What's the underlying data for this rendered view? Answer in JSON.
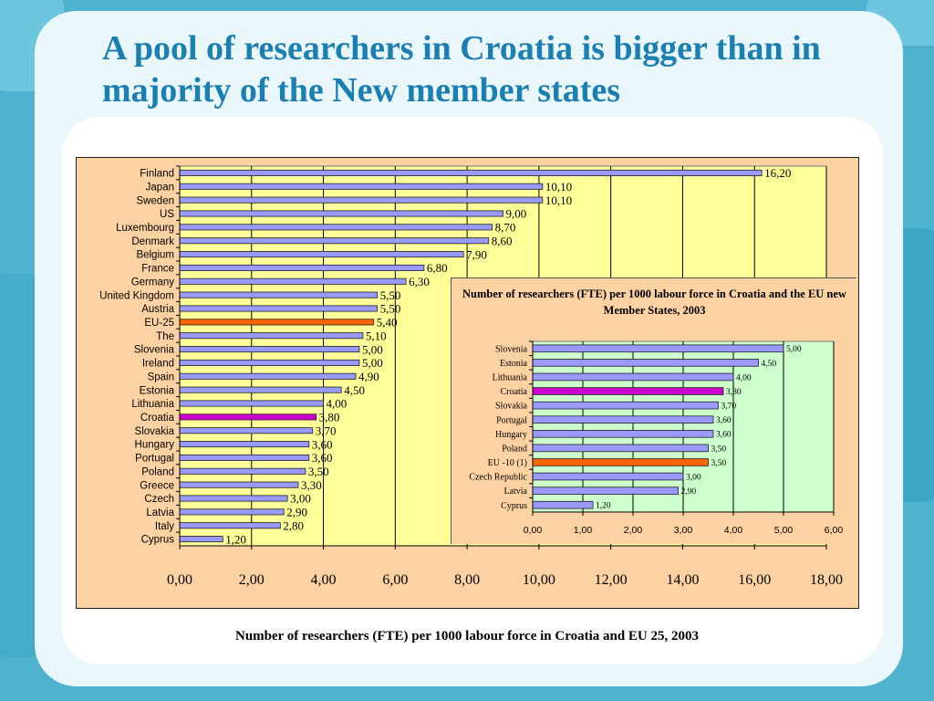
{
  "slide": {
    "title": "A pool of researchers in Croatia is bigger than in majority of the New member states",
    "caption": "Number of researchers (FTE) per 1000 labour force in Croatia and EU 25, 2003"
  },
  "colors": {
    "background": "#54b7d3",
    "title": "#1c7fb2",
    "chart_frame": "#fdd2a2",
    "main_plot": "#ffff99",
    "inset_plot": "#ccffcc",
    "bar": "#9999ff",
    "highlight_croatia": "#cc00cc",
    "highlight_eu": "#ff6600"
  },
  "chart_data": [
    {
      "type": "bar",
      "orientation": "horizontal",
      "title": "",
      "xlabel": "",
      "ylabel": "",
      "categories": [
        "Finland",
        "Japan",
        "Sweden",
        "US",
        "Luxembourg",
        "Denmark",
        "Belgium",
        "France",
        "Germany",
        "United Kingdom",
        "Austria",
        "EU-25",
        "The",
        "Slovenia",
        "Ireland",
        "Spain",
        "Estonia",
        "Lithuania",
        "Croatia",
        "Slovakia",
        "Hungary",
        "Portugal",
        "Poland",
        "Greece",
        "Czech",
        "Latvia",
        "Italy",
        "Cyprus"
      ],
      "values": [
        16.2,
        10.1,
        10.1,
        9.0,
        8.7,
        8.6,
        7.9,
        6.8,
        6.3,
        5.5,
        5.5,
        5.4,
        5.1,
        5.0,
        5.0,
        4.9,
        4.5,
        4.0,
        3.8,
        3.7,
        3.6,
        3.6,
        3.5,
        3.3,
        3.0,
        2.9,
        2.8,
        1.2
      ],
      "value_labels": [
        "16,20",
        "10,10",
        "10,10",
        "9,00",
        "8,70",
        "8,60",
        "7,90",
        "6,80",
        "6,30",
        "5,50",
        "5,50",
        "5,40",
        "5,10",
        "5,00",
        "5,00",
        "4,90",
        "4,50",
        "4,00",
        "3,80",
        "3,70",
        "3,60",
        "3,60",
        "3,50",
        "3,30",
        "3,00",
        "2,90",
        "2,80",
        "1,20"
      ],
      "highlight": {
        "Croatia": "#cc00cc",
        "EU-25": "#ff6600"
      },
      "xlim": [
        0,
        18
      ],
      "ticks": [
        0,
        2,
        4,
        6,
        8,
        10,
        12,
        14,
        16,
        18
      ],
      "tick_labels": [
        "0,00",
        "2,00",
        "4,00",
        "6,00",
        "8,00",
        "10,00",
        "12,00",
        "14,00",
        "16,00",
        "18,00"
      ],
      "grid": "vertical"
    },
    {
      "type": "bar",
      "orientation": "horizontal",
      "title": "Number of researchers (FTE) per 1000 labour force in Croatia and the EU new Member States, 2003",
      "xlabel": "",
      "ylabel": "",
      "categories": [
        "Slovenia",
        "Estonia",
        "Lithuania",
        "Croatia",
        "Slovakia",
        "Portugal",
        "Hungary",
        "Poland",
        "EU -10 (1)",
        "Czech Republic",
        "Latvia",
        "Cyprus"
      ],
      "values": [
        5.0,
        4.5,
        4.0,
        3.8,
        3.7,
        3.6,
        3.6,
        3.5,
        3.5,
        3.0,
        2.9,
        1.2
      ],
      "value_labels": [
        "5,00",
        "4,50",
        "4,00",
        "3,80",
        "3,70",
        "3,60",
        "3,60",
        "3,50",
        "3,50",
        "3,00",
        "2,90",
        "1,20"
      ],
      "highlight": {
        "Croatia": "#cc00cc",
        "EU -10 (1)": "#ff6600"
      },
      "xlim": [
        0,
        6
      ],
      "ticks": [
        0,
        1,
        2,
        3,
        4,
        5,
        6
      ],
      "tick_labels": [
        "0,00",
        "1,00",
        "2,00",
        "3,00",
        "4,00",
        "5,00",
        "6,00"
      ],
      "grid": "vertical"
    }
  ]
}
